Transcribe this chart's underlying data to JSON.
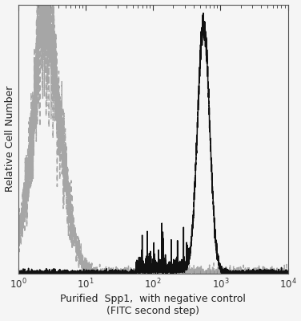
{
  "title": "",
  "xlabel_line1": "Purified  Spp1,  with negative control",
  "xlabel_line2": "(FITC second step)",
  "ylabel": "Relative Cell Number",
  "xlim_log": [
    0,
    4
  ],
  "ylim": [
    0,
    1.05
  ],
  "background_color": "#f5f5f5",
  "gray_peak_log": 0.42,
  "gray_sigma_log": 0.22,
  "black_peak_log": 2.75,
  "black_sigma_log": 0.09,
  "gray_color": "#999999",
  "black_color": "#111111",
  "baseline": 0.008,
  "figsize": [
    3.76,
    4.0
  ],
  "dpi": 100
}
